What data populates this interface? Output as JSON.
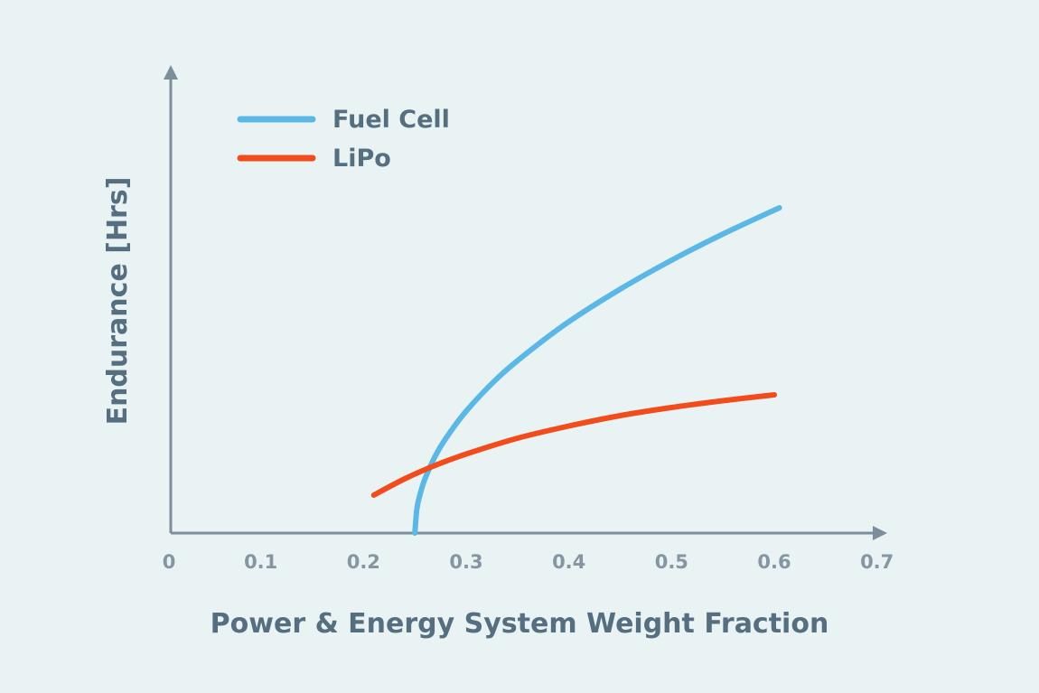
{
  "chart_data": {
    "type": "line",
    "title": "",
    "xlabel": "Power & Energy System Weight Fraction",
    "ylabel": "Endurance [Hrs]",
    "xlim": [
      0,
      0.7
    ],
    "ylim": [
      0,
      1
    ],
    "x_ticks": [
      "0",
      "0.1",
      "0.2",
      "0.3",
      "0.4",
      "0.5",
      "0.6",
      "0.7"
    ],
    "y_ticks": [],
    "grid": false,
    "legend_position": "top-left",
    "series": [
      {
        "name": "Fuel Cell",
        "color": "#5bb8e6",
        "x": [
          0.25,
          0.252,
          0.255,
          0.26,
          0.27,
          0.28,
          0.3,
          0.33,
          0.36,
          0.4,
          0.45,
          0.5,
          0.55,
          0.605
        ],
        "y": [
          0,
          0.054,
          0.085,
          0.121,
          0.171,
          0.209,
          0.27,
          0.342,
          0.4,
          0.468,
          0.54,
          0.604,
          0.662,
          0.72
        ]
      },
      {
        "name": "LiPo",
        "color": "#f24c1c",
        "x": [
          0.21,
          0.24,
          0.27,
          0.3,
          0.35,
          0.4,
          0.45,
          0.5,
          0.55,
          0.6
        ],
        "y": [
          0.084,
          0.12,
          0.15,
          0.175,
          0.21,
          0.237,
          0.26,
          0.278,
          0.293,
          0.306
        ]
      }
    ]
  }
}
